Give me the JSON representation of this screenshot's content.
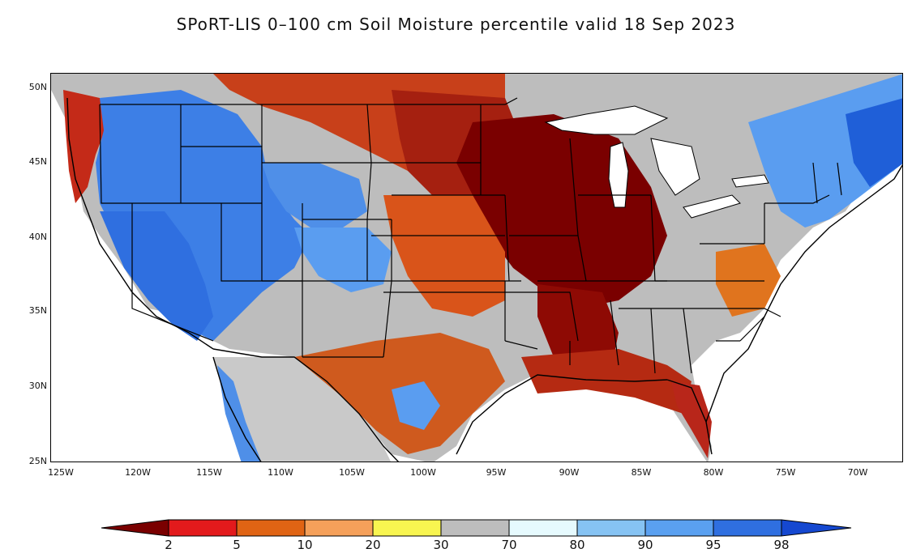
{
  "title": "SPoRT-LIS 0–100 cm Soil Moisture percentile valid 18 Sep 2023",
  "axes": {
    "lat_labels": [
      "50N",
      "45N",
      "40N",
      "35N",
      "30N",
      "25N"
    ],
    "lon_labels": [
      "125W",
      "120W",
      "115W",
      "110W",
      "105W",
      "100W",
      "95W",
      "90W",
      "85W",
      "80W",
      "75W",
      "70W"
    ]
  },
  "colorbar": {
    "labels": [
      "2",
      "5",
      "10",
      "20",
      "30",
      "70",
      "80",
      "90",
      "95",
      "98"
    ],
    "colors": [
      "#7a0000",
      "#e31a1c",
      "#e06414",
      "#f5a05a",
      "#f8f550",
      "#bdbdbd",
      "#e6fafe",
      "#86c3f3",
      "#5aa0f0",
      "#2f6fe0",
      "#1548d0"
    ]
  },
  "legend": {
    "dry_extreme_color": "#7a0000",
    "wet_extreme_color": "#1548d0",
    "neutral_color": "#bdbdbd",
    "lakes_color": "#ffffff"
  }
}
